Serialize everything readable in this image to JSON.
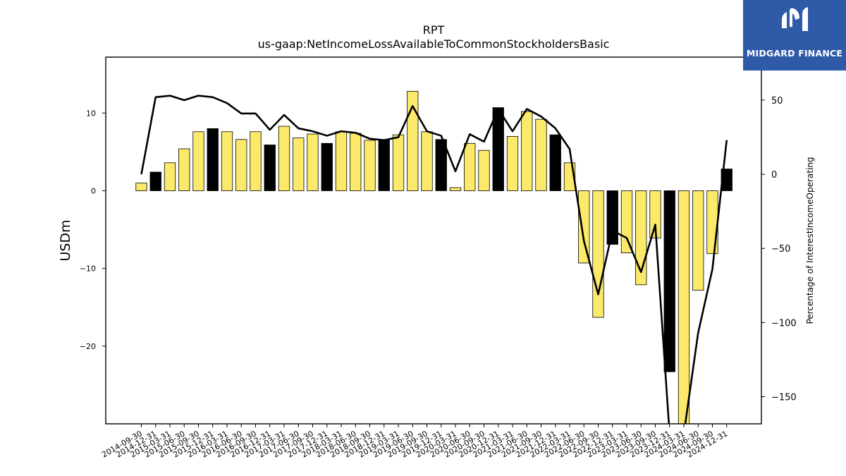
{
  "logo": {
    "text": "MIDGARD FINANCE"
  },
  "chart_data": {
    "type": "bar+line",
    "title": "RPT",
    "subtitle": "us-gaap:NetIncomeLossAvailableToCommonStockholdersBasic",
    "ylabel_left": "USDm",
    "ylabel_right": "Percentage of InterestIncomeOperating",
    "ylim_left": [
      -30,
      17.2
    ],
    "ylim_right": [
      -168.3,
      79
    ],
    "yticks_left": [
      10,
      0,
      -10,
      -20
    ],
    "yticks_right": [
      50,
      0,
      -50,
      -100,
      -150
    ],
    "ytick_labels_left": [
      "10",
      "0",
      "−10",
      "−20"
    ],
    "ytick_labels_right": [
      "50",
      "0",
      "−50",
      "−100",
      "−150"
    ],
    "categories": [
      "2014-09-30",
      "2014-12-31",
      "2015-03-31",
      "2015-06-30",
      "2015-09-30",
      "2015-12-31",
      "2016-03-31",
      "2016-06-30",
      "2016-09-30",
      "2016-12-31",
      "2017-03-31",
      "2017-06-30",
      "2017-09-30",
      "2017-12-31",
      "2018-03-31",
      "2018-06-30",
      "2018-09-30",
      "2018-12-31",
      "2019-03-31",
      "2019-06-30",
      "2019-09-30",
      "2019-12-31",
      "2020-03-31",
      "2020-06-30",
      "2020-09-30",
      "2020-12-31",
      "2021-03-31",
      "2021-06-30",
      "2021-09-30",
      "2021-12-31",
      "2022-03-31",
      "2022-06-30",
      "2022-09-30",
      "2022-12-31",
      "2023-03-31",
      "2023-06-30",
      "2023-09-30",
      "2023-12-31",
      "2024-03-31",
      "2024-06-30",
      "2024-09-30",
      "2024-12-31"
    ],
    "bar_values": [
      1.0,
      2.4,
      3.6,
      5.4,
      7.6,
      8.0,
      7.6,
      6.6,
      7.6,
      5.9,
      8.3,
      6.8,
      7.3,
      6.1,
      7.6,
      7.4,
      6.5,
      6.6,
      7.2,
      12.8,
      7.6,
      6.6,
      0.4,
      6.1,
      5.2,
      10.7,
      7.0,
      10.2,
      9.2,
      7.2,
      3.6,
      -9.3,
      -16.3,
      -6.9,
      -8.0,
      -12.1,
      -6.1,
      -23.3,
      -30.0,
      -12.8,
      -8.1,
      2.8
    ],
    "bar_highlight": [
      false,
      true,
      false,
      false,
      false,
      true,
      false,
      false,
      false,
      true,
      false,
      false,
      false,
      true,
      false,
      false,
      false,
      true,
      false,
      false,
      false,
      true,
      false,
      false,
      false,
      true,
      false,
      false,
      false,
      true,
      false,
      false,
      false,
      true,
      false,
      false,
      false,
      true,
      false,
      false,
      false,
      true
    ],
    "line_values": [
      0,
      52,
      53,
      50,
      53,
      52,
      48,
      41,
      41,
      30,
      40,
      31,
      29,
      26,
      29,
      28,
      24,
      23,
      25,
      46,
      29,
      26,
      2,
      27,
      22,
      44,
      29,
      44,
      39,
      31,
      17,
      -45,
      -81,
      -38,
      -43,
      -66,
      -34,
      -175,
      -175,
      -107,
      -64,
      23
    ],
    "colors": {
      "bar": "#fce96a",
      "bar_highlight": "#000000",
      "line": "#000000"
    }
  }
}
